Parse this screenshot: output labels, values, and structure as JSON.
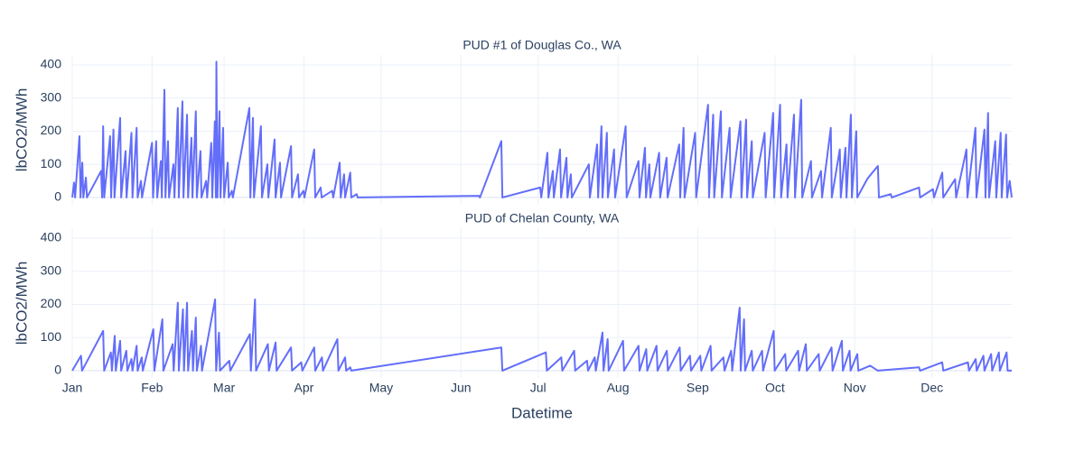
{
  "chart_data": [
    {
      "type": "line",
      "title": "PUD #1 of Douglas Co., WA",
      "ylabel": "lbCO2/MWh",
      "xlim": [
        0,
        365
      ],
      "ylim": [
        -22,
        430
      ],
      "yticks": [
        0,
        100,
        200,
        300,
        400
      ],
      "grid": true,
      "series": [
        {
          "color": "#636efa",
          "x": [
            0,
            0.7,
            1.1,
            2.8,
            3.2,
            3.9,
            4.3,
            5.3,
            5.7,
            11.2,
            11.6,
            12,
            12.4,
            14.7,
            15.1,
            16,
            16.4,
            18.6,
            19,
            20.7,
            21.1,
            23,
            23.4,
            25,
            25.4,
            26.7,
            27.1,
            31,
            31.4,
            32.6,
            33,
            34.4,
            34.8,
            35.8,
            36.2,
            37.2,
            37.6,
            39.3,
            39.7,
            41,
            41.4,
            42.8,
            43.2,
            44.6,
            45,
            46.3,
            46.7,
            48,
            48.4,
            49.8,
            50.2,
            52,
            52.4,
            54,
            54.4,
            55.4,
            55.8,
            56,
            56.4,
            57.2,
            57.6,
            58.6,
            59,
            60.4,
            60.8,
            62,
            62.4,
            68.8,
            69.2,
            70.2,
            70.6,
            73.3,
            73.7,
            75.8,
            76.2,
            78.6,
            79,
            80.7,
            81.1,
            85,
            85.4,
            87.7,
            88.1,
            89.8,
            90.2,
            94,
            94.4,
            96.5,
            96.9,
            101,
            101.4,
            103.9,
            104.3,
            105.6,
            106,
            108,
            108.4,
            110.5,
            110.9,
            158,
            158.4,
            166.7,
            167.1,
            181.8,
            182.2,
            184.6,
            185,
            186.7,
            187.1,
            189.5,
            189.9,
            192,
            192.4,
            193.7,
            194.1,
            200.7,
            201.1,
            203.9,
            204.3,
            205.6,
            206,
            207.7,
            208.1,
            210.5,
            210.9,
            215,
            215.4,
            220,
            220.4,
            222.5,
            222.9,
            224.2,
            224.6,
            228,
            228.4,
            230.9,
            231.3,
            235.8,
            236.2,
            237.5,
            237.9,
            242,
            242.4,
            247,
            247.4,
            249,
            249.4,
            252,
            252.4,
            255.4,
            255.8,
            259.6,
            260,
            261.8,
            262.2,
            264,
            264.4,
            269,
            269.4,
            272.3,
            272.7,
            275,
            275.4,
            277.5,
            277.9,
            280.4,
            280.8,
            283.2,
            283.6,
            287,
            287.4,
            290.9,
            291.3,
            294.7,
            295.1,
            298.2,
            298.6,
            300.4,
            300.8,
            302.5,
            302.9,
            304.6,
            305,
            308.8,
            309.8,
            313,
            313.4,
            318,
            318.4,
            329,
            329.4,
            334.4,
            334.8,
            338,
            338.4,
            343,
            343.4,
            347.4,
            347.8,
            350.9,
            351.3,
            354.4,
            354.8,
            355.8,
            356.2,
            358.6,
            359,
            360.7,
            361.1,
            362.8,
            363.2,
            364.2,
            365
          ],
          "values": [
            0,
            45,
            0,
            185,
            0,
            105,
            0,
            60,
            0,
            80,
            0,
            215,
            0,
            185,
            0,
            205,
            0,
            240,
            0,
            140,
            0,
            195,
            0,
            210,
            0,
            50,
            0,
            165,
            0,
            170,
            0,
            110,
            0,
            325,
            0,
            170,
            0,
            100,
            0,
            270,
            0,
            290,
            0,
            250,
            0,
            180,
            0,
            260,
            0,
            140,
            0,
            50,
            0,
            165,
            0,
            230,
            0,
            410,
            0,
            260,
            0,
            210,
            0,
            105,
            0,
            20,
            0,
            270,
            0,
            240,
            0,
            215,
            0,
            100,
            0,
            175,
            0,
            105,
            0,
            155,
            0,
            70,
            0,
            20,
            0,
            145,
            0,
            30,
            0,
            20,
            0,
            105,
            0,
            70,
            0,
            75,
            0,
            10,
            0,
            5,
            0,
            170,
            0,
            30,
            0,
            135,
            0,
            80,
            0,
            145,
            0,
            120,
            0,
            70,
            0,
            100,
            0,
            160,
            0,
            215,
            0,
            195,
            0,
            145,
            0,
            215,
            0,
            110,
            0,
            150,
            0,
            100,
            0,
            135,
            0,
            120,
            0,
            160,
            0,
            210,
            0,
            195,
            0,
            280,
            0,
            250,
            0,
            260,
            0,
            210,
            0,
            230,
            0,
            235,
            0,
            170,
            0,
            195,
            0,
            255,
            0,
            280,
            0,
            160,
            0,
            250,
            0,
            295,
            0,
            110,
            0,
            80,
            0,
            210,
            0,
            145,
            0,
            150,
            0,
            250,
            0,
            200,
            0,
            55,
            65,
            95,
            0,
            10,
            0,
            30,
            0,
            25,
            0,
            75,
            0,
            55,
            0,
            145,
            0,
            210,
            0,
            205,
            0,
            255,
            0,
            170,
            0,
            195,
            0,
            190,
            0,
            50,
            0
          ]
        }
      ]
    },
    {
      "type": "line",
      "title": "PUD of Chelan County, WA",
      "ylabel": "lbCO2/MWh",
      "xlabel": "Datetime",
      "xlim": [
        0,
        365
      ],
      "ylim": [
        -22,
        430
      ],
      "yticks": [
        0,
        100,
        200,
        300,
        400
      ],
      "grid": true,
      "xticks": [
        {
          "value": 0,
          "label": "Jan"
        },
        {
          "value": 31,
          "label": "Feb"
        },
        {
          "value": 59,
          "label": "Mar"
        },
        {
          "value": 90,
          "label": "Apr"
        },
        {
          "value": 120,
          "label": "May"
        },
        {
          "value": 151,
          "label": "Jun"
        },
        {
          "value": 181,
          "label": "Jul"
        },
        {
          "value": 212,
          "label": "Aug"
        },
        {
          "value": 243,
          "label": "Sep"
        },
        {
          "value": 273,
          "label": "Oct"
        },
        {
          "value": 304,
          "label": "Nov"
        },
        {
          "value": 334,
          "label": "Dec"
        }
      ],
      "series": [
        {
          "color": "#636efa",
          "x": [
            0,
            3.4,
            3.8,
            12,
            12.4,
            15,
            15.4,
            16.5,
            16.9,
            18.6,
            19,
            21,
            21.4,
            23,
            23.4,
            25,
            25.4,
            27,
            27.4,
            31.5,
            31.9,
            35,
            35.4,
            39,
            39.4,
            41,
            41.4,
            43,
            43.4,
            44.6,
            45,
            46.5,
            46.9,
            48,
            48.4,
            50,
            50.4,
            55.5,
            55.9,
            57,
            57.4,
            61,
            61.4,
            69,
            69.4,
            71,
            71.4,
            76,
            76.4,
            79,
            79.4,
            85,
            85.4,
            89,
            89.4,
            94,
            94.4,
            97,
            97.4,
            103,
            103.4,
            106,
            106.4,
            108,
            108.4,
            166.7,
            167.1,
            184,
            184.4,
            190,
            190.4,
            195,
            195.4,
            200,
            200.4,
            203,
            203.4,
            206,
            206.4,
            208,
            208.4,
            214,
            214.4,
            220,
            220.4,
            223,
            223.4,
            227,
            227.4,
            231,
            231.4,
            236,
            236.4,
            240,
            240.4,
            244,
            244.4,
            248,
            248.4,
            253,
            253.4,
            256,
            256.4,
            259.3,
            259.7,
            261,
            261.4,
            264,
            264.4,
            268,
            268.4,
            272.5,
            272.9,
            277,
            277.4,
            282,
            282.4,
            285,
            285.4,
            290,
            290.4,
            295,
            295.4,
            299,
            299.4,
            302,
            302.4,
            305,
            305.4,
            310,
            313,
            329,
            329.4,
            338,
            338.4,
            348,
            348.4,
            351,
            351.4,
            354,
            354.4,
            357,
            357.4,
            360,
            360.4,
            363,
            363.4,
            365
          ],
          "values": [
            0,
            45,
            0,
            120,
            0,
            55,
            0,
            105,
            0,
            90,
            0,
            60,
            0,
            35,
            0,
            75,
            0,
            40,
            0,
            125,
            0,
            155,
            0,
            80,
            0,
            205,
            0,
            185,
            0,
            205,
            0,
            120,
            0,
            160,
            0,
            75,
            0,
            215,
            0,
            115,
            0,
            30,
            0,
            110,
            0,
            215,
            0,
            80,
            0,
            85,
            0,
            70,
            0,
            25,
            0,
            70,
            0,
            40,
            0,
            95,
            0,
            40,
            0,
            10,
            0,
            70,
            0,
            55,
            0,
            40,
            0,
            60,
            0,
            30,
            0,
            40,
            0,
            115,
            0,
            95,
            0,
            90,
            0,
            75,
            0,
            65,
            0,
            75,
            0,
            60,
            0,
            70,
            0,
            45,
            0,
            45,
            0,
            75,
            0,
            40,
            0,
            60,
            0,
            190,
            0,
            155,
            0,
            60,
            0,
            60,
            0,
            120,
            0,
            50,
            0,
            60,
            0,
            80,
            0,
            50,
            0,
            70,
            0,
            90,
            0,
            60,
            0,
            50,
            0,
            15,
            0,
            10,
            0,
            25,
            0,
            25,
            0,
            35,
            0,
            45,
            0,
            50,
            0,
            55,
            0,
            55,
            0,
            0
          ]
        }
      ]
    }
  ]
}
